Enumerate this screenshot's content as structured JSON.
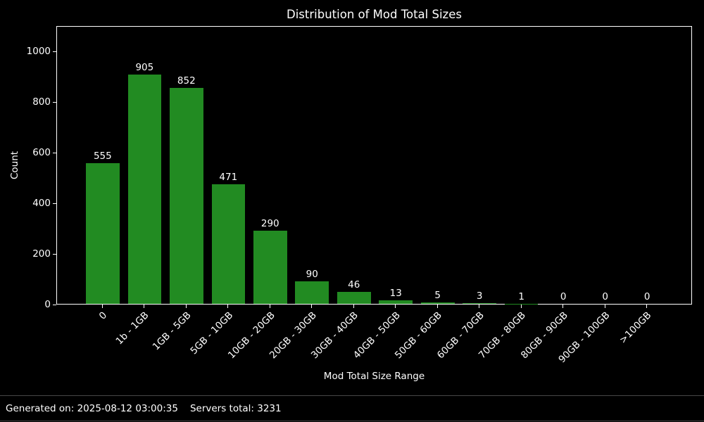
{
  "title": "Distribution of Mod Total Sizes",
  "footer": {
    "generated": "Generated on: 2025-08-12 03:00:35",
    "servers_total": "Servers total: 3231"
  },
  "colors": {
    "background": "#000000",
    "bar": "#228b22",
    "text": "#ffffff",
    "axis": "#ffffff",
    "separator": "#474747"
  },
  "chart_data": {
    "type": "bar",
    "title": "Distribution of Mod Total Sizes",
    "xlabel": "Mod Total Size Range",
    "ylabel": "Count",
    "categories": [
      "0",
      "1b - 1GB",
      "1GB - 5GB",
      "5GB - 10GB",
      "10GB - 20GB",
      "20GB - 30GB",
      "30GB - 40GB",
      "40GB - 50GB",
      "50GB - 60GB",
      "60GB - 70GB",
      "70GB - 80GB",
      "80GB - 90GB",
      "90GB - 100GB",
      ">100GB"
    ],
    "values": [
      555,
      905,
      852,
      471,
      290,
      90,
      46,
      13,
      5,
      3,
      1,
      0,
      0,
      0
    ],
    "bar_labels": [
      555,
      905,
      852,
      471,
      290,
      90,
      46,
      13,
      5,
      3,
      1,
      0,
      0,
      0
    ],
    "yticks": [
      0,
      200,
      400,
      600,
      800,
      1000
    ],
    "ylim": [
      0,
      1100
    ],
    "x_tick_rotation": 45,
    "grid": false,
    "legend": false,
    "bar_color": "#228b22",
    "background": "black"
  }
}
